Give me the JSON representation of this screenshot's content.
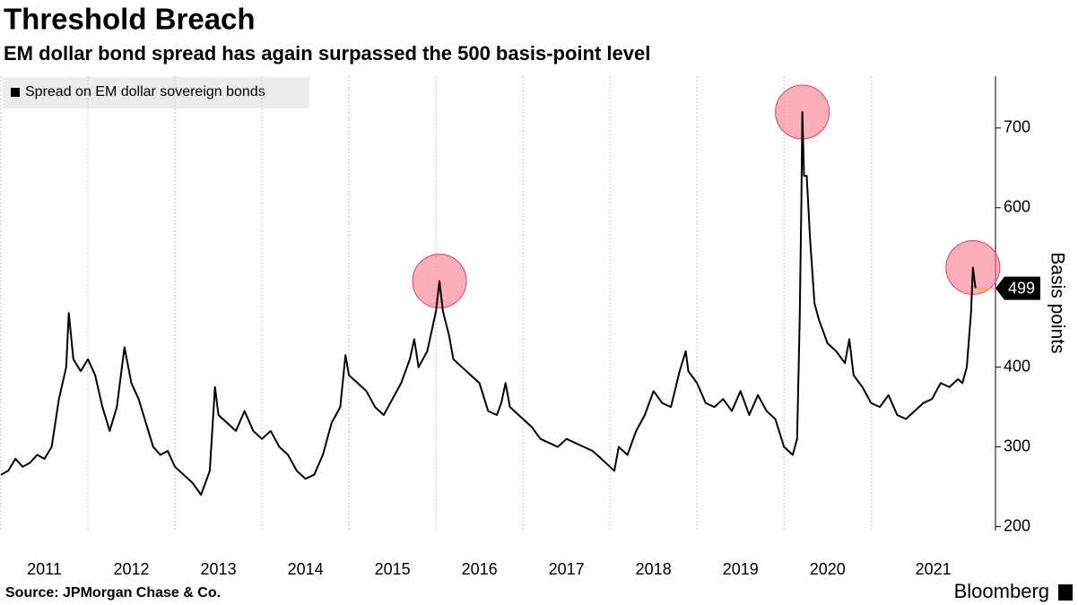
{
  "chart_data": {
    "type": "line",
    "title": "Threshold Breach",
    "subtitle": "EM dollar bond spread has again surpassed the 500 basis-point level",
    "y_label": "Basis points",
    "source": "Source: JPMorgan Chase & Co.",
    "brand": "Bloomberg",
    "xlim": [
      2011,
      2022.43
    ],
    "xticks": [
      {
        "value": 2011,
        "label": "2011"
      },
      {
        "value": 2012,
        "label": "2012"
      },
      {
        "value": 2013,
        "label": "2013"
      },
      {
        "value": 2014,
        "label": "2014"
      },
      {
        "value": 2015,
        "label": "2015"
      },
      {
        "value": 2016,
        "label": "2016"
      },
      {
        "value": 2017,
        "label": "2017"
      },
      {
        "value": 2018,
        "label": "2018"
      },
      {
        "value": 2019,
        "label": "2019"
      },
      {
        "value": 2020,
        "label": "2020"
      },
      {
        "value": 2021,
        "label": "2021"
      }
    ],
    "ylim": [
      195,
      765
    ],
    "yticks": [
      200,
      300,
      400,
      600,
      700
    ],
    "last_value": 499,
    "highlights": [
      {
        "x": 2016.04,
        "y": 508
      },
      {
        "x": 2020.21,
        "y": 720
      },
      {
        "x": 2022.17,
        "y": 525
      }
    ],
    "series": [
      {
        "name": "Spread on EM dollar sovereign bonds",
        "color": "#000000",
        "x": [
          2011.0,
          2011.083,
          2011.167,
          2011.25,
          2011.333,
          2011.417,
          2011.5,
          2011.583,
          2011.667,
          2011.75,
          2011.78,
          2011.833,
          2011.917,
          2012.0,
          2012.083,
          2012.167,
          2012.25,
          2012.333,
          2012.42,
          2012.5,
          2012.583,
          2012.667,
          2012.75,
          2012.833,
          2012.917,
          2013.0,
          2013.1,
          2013.2,
          2013.3,
          2013.4,
          2013.46,
          2013.5,
          2013.6,
          2013.7,
          2013.8,
          2013.9,
          2014.0,
          2014.1,
          2014.2,
          2014.3,
          2014.4,
          2014.5,
          2014.6,
          2014.7,
          2014.8,
          2014.9,
          2014.96,
          2015.0,
          2015.1,
          2015.2,
          2015.3,
          2015.4,
          2015.5,
          2015.6,
          2015.7,
          2015.75,
          2015.8,
          2015.9,
          2016.0,
          2016.04,
          2016.08,
          2016.15,
          2016.2,
          2016.3,
          2016.4,
          2016.5,
          2016.6,
          2016.7,
          2016.75,
          2016.8,
          2016.85,
          2016.9,
          2017.0,
          2017.1,
          2017.2,
          2017.3,
          2017.4,
          2017.5,
          2017.6,
          2017.7,
          2017.8,
          2017.9,
          2018.0,
          2018.05,
          2018.1,
          2018.2,
          2018.3,
          2018.4,
          2018.5,
          2018.6,
          2018.7,
          2018.8,
          2018.87,
          2018.9,
          2019.0,
          2019.1,
          2019.2,
          2019.3,
          2019.4,
          2019.5,
          2019.6,
          2019.7,
          2019.8,
          2019.9,
          2020.0,
          2020.1,
          2020.15,
          2020.18,
          2020.2,
          2020.21,
          2020.23,
          2020.26,
          2020.3,
          2020.35,
          2020.4,
          2020.5,
          2020.6,
          2020.7,
          2020.75,
          2020.8,
          2020.9,
          2021.0,
          2021.1,
          2021.2,
          2021.3,
          2021.4,
          2021.5,
          2021.6,
          2021.7,
          2021.8,
          2021.9,
          2022.0,
          2022.05,
          2022.1,
          2022.15,
          2022.17,
          2022.2
        ],
        "values": [
          265,
          270,
          285,
          275,
          280,
          290,
          285,
          300,
          360,
          400,
          468,
          410,
          395,
          410,
          390,
          350,
          320,
          350,
          425,
          380,
          360,
          330,
          300,
          290,
          295,
          275,
          265,
          255,
          240,
          270,
          375,
          340,
          330,
          320,
          345,
          320,
          310,
          320,
          300,
          290,
          270,
          260,
          265,
          290,
          330,
          350,
          415,
          390,
          380,
          370,
          350,
          340,
          360,
          380,
          410,
          435,
          400,
          420,
          470,
          508,
          470,
          440,
          410,
          400,
          390,
          380,
          345,
          340,
          355,
          380,
          350,
          345,
          335,
          325,
          310,
          305,
          300,
          310,
          305,
          300,
          295,
          285,
          275,
          270,
          300,
          290,
          320,
          340,
          370,
          355,
          350,
          395,
          420,
          395,
          380,
          355,
          350,
          360,
          345,
          370,
          340,
          365,
          345,
          335,
          300,
          290,
          310,
          460,
          610,
          720,
          640,
          640,
          560,
          480,
          460,
          430,
          420,
          405,
          435,
          390,
          375,
          355,
          350,
          365,
          340,
          335,
          345,
          355,
          360,
          380,
          375,
          385,
          380,
          400,
          470,
          525,
          499
        ]
      }
    ]
  }
}
